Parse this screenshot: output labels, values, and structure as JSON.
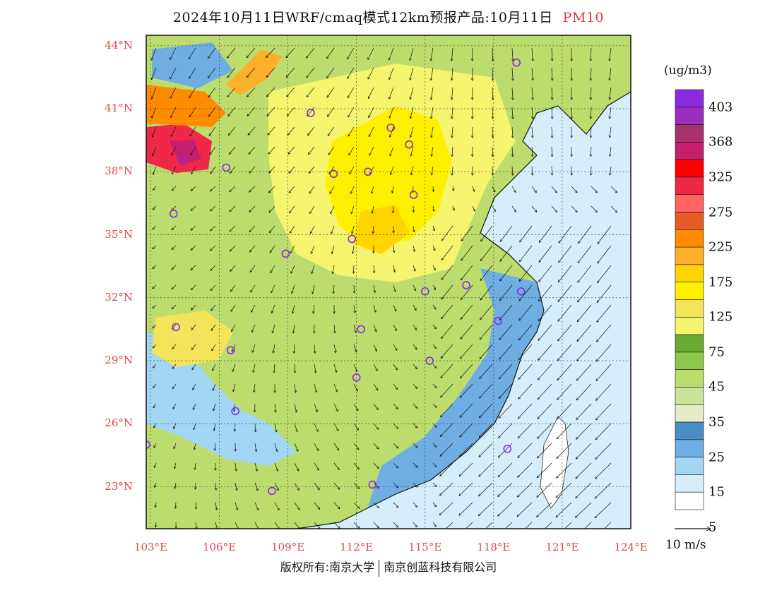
{
  "title": {
    "main": "2024年10月11日WRF/cmaq模式12km预报产品:10月11日",
    "pollutant": "PM10"
  },
  "axes": {
    "lat_labels": [
      "44°N",
      "41°N",
      "38°N",
      "35°N",
      "32°N",
      "29°N",
      "26°N",
      "23°N"
    ],
    "lon_labels": [
      "103°E",
      "106°E",
      "109°E",
      "112°E",
      "115°E",
      "118°E",
      "121°E",
      "124°E"
    ]
  },
  "colorbar": {
    "unit": "(ug/m3)",
    "labels": [
      "403",
      "368",
      "325",
      "275",
      "225",
      "175",
      "125",
      "75",
      "45",
      "35",
      "25",
      "15",
      "5"
    ],
    "colors": [
      "#8a2be2",
      "#9a2fbf",
      "#a8326a",
      "#c81e6e",
      "#ff0000",
      "#f02848",
      "#ff6464",
      "#e85a28",
      "#ff8c00",
      "#ffb02a",
      "#ffd400",
      "#fff000",
      "#f4e45a",
      "#f4f46e",
      "#6aaa32",
      "#8cc84a",
      "#bcdc6e",
      "#cce49a",
      "#e6ecc8",
      "#4a8ec8",
      "#6eaee2",
      "#a2d6f4",
      "#d6eefa",
      "#ffffff"
    ]
  },
  "wind_reference": {
    "label": "10 m/s"
  },
  "footer": {
    "left": "版权所有:南京大学",
    "right": "南京创蓝科技有限公司"
  },
  "map": {
    "lat_range": [
      21,
      44.5
    ],
    "lon_range": [
      102.8,
      124
    ],
    "color_key": {
      "very_low": "#d6eefa",
      "low": "#a2d6f4",
      "low_mid": "#6eaee2",
      "mid_blue": "#4a8ec8",
      "pale_green": "#e6ecc8",
      "light_green": "#cce49a",
      "green": "#bcdc6e",
      "mid_green": "#8cc84a",
      "dark_green": "#6aaa32",
      "pale_yellow": "#f4f46e",
      "yellow": "#f4e45a",
      "bright_yellow": "#fff000",
      "gold": "#ffd400",
      "orange": "#ffb02a",
      "dark_orange": "#ff8c00",
      "red": "#f02848",
      "crimson": "#c81e6e",
      "station": "#8a2be2"
    },
    "stations": [
      {
        "lat": 43.2,
        "lon": 119.0
      },
      {
        "lat": 40.8,
        "lon": 110.0
      },
      {
        "lat": 40.1,
        "lon": 113.5
      },
      {
        "lat": 39.3,
        "lon": 114.3
      },
      {
        "lat": 38.6,
        "lon": 104.4
      },
      {
        "lat": 38.2,
        "lon": 106.3
      },
      {
        "lat": 37.9,
        "lon": 111.0
      },
      {
        "lat": 38.0,
        "lon": 112.5
      },
      {
        "lat": 36.9,
        "lon": 114.5
      },
      {
        "lat": 36.0,
        "lon": 104.0
      },
      {
        "lat": 34.8,
        "lon": 111.8
      },
      {
        "lat": 34.1,
        "lon": 108.9
      },
      {
        "lat": 32.3,
        "lon": 115.0
      },
      {
        "lat": 32.6,
        "lon": 116.8
      },
      {
        "lat": 32.3,
        "lon": 119.2
      },
      {
        "lat": 30.9,
        "lon": 118.2
      },
      {
        "lat": 30.6,
        "lon": 104.1
      },
      {
        "lat": 30.5,
        "lon": 112.2
      },
      {
        "lat": 29.5,
        "lon": 106.5
      },
      {
        "lat": 29.0,
        "lon": 115.2
      },
      {
        "lat": 28.2,
        "lon": 112.0
      },
      {
        "lat": 26.6,
        "lon": 106.7
      },
      {
        "lat": 25.0,
        "lon": 102.8
      },
      {
        "lat": 24.8,
        "lon": 118.6
      },
      {
        "lat": 23.1,
        "lon": 112.7
      },
      {
        "lat": 22.8,
        "lon": 108.3
      }
    ]
  }
}
